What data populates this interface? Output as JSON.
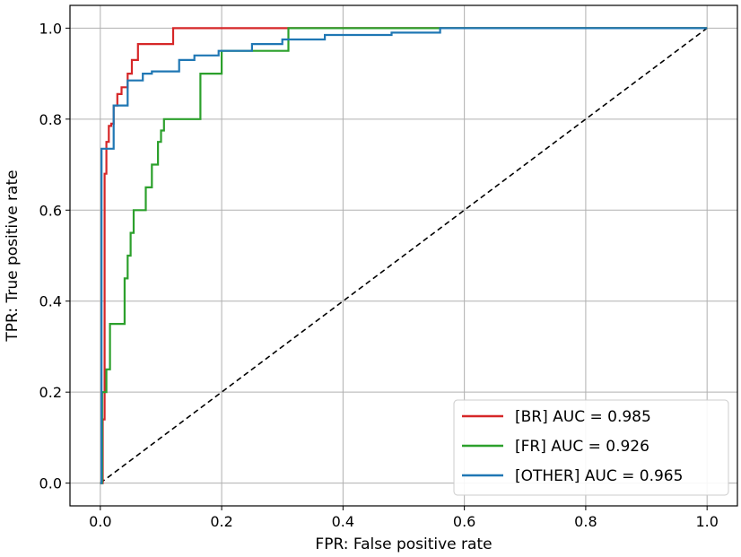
{
  "chart_data": {
    "type": "line",
    "xlabel": "FPR: False positive rate",
    "ylabel": "TPR: True positive rate",
    "xlim": [
      -0.05,
      1.05
    ],
    "ylim": [
      -0.05,
      1.05
    ],
    "xticks": [
      0.0,
      0.2,
      0.4,
      0.6,
      0.8,
      1.0
    ],
    "xtick_labels": [
      "0.0",
      "0.2",
      "0.4",
      "0.6",
      "0.8",
      "1.0"
    ],
    "yticks": [
      0.0,
      0.2,
      0.4,
      0.6,
      0.8,
      1.0
    ],
    "ytick_labels": [
      "0.0",
      "0.2",
      "0.4",
      "0.6",
      "0.8",
      "1.0"
    ],
    "grid": true,
    "legend_position": "lower-right",
    "diagonal": {
      "x": [
        0,
        1
      ],
      "y": [
        0,
        1
      ],
      "style": "dashed",
      "color": "#000000"
    },
    "series": [
      {
        "name": "[BR] AUC = 0.985",
        "color": "#d62728",
        "x": [
          0,
          0.004,
          0.004,
          0.007,
          0.007,
          0.01,
          0.01,
          0.014,
          0.014,
          0.018,
          0.018,
          0.022,
          0.022,
          0.028,
          0.028,
          0.035,
          0.035,
          0.045,
          0.045,
          0.052,
          0.052,
          0.062,
          0.062,
          0.08,
          0.08,
          0.12,
          0.12,
          0.5,
          1.0
        ],
        "y": [
          0,
          0,
          0.14,
          0.14,
          0.68,
          0.68,
          0.75,
          0.75,
          0.785,
          0.785,
          0.79,
          0.79,
          0.83,
          0.83,
          0.855,
          0.855,
          0.87,
          0.87,
          0.9,
          0.9,
          0.93,
          0.93,
          0.965,
          0.965,
          0.965,
          0.965,
          1.0,
          1.0,
          1.0
        ]
      },
      {
        "name": "[FR] AUC = 0.926",
        "color": "#2ca02c",
        "x": [
          0,
          0.003,
          0.003,
          0.01,
          0.01,
          0.016,
          0.016,
          0.04,
          0.04,
          0.045,
          0.045,
          0.05,
          0.05,
          0.055,
          0.055,
          0.075,
          0.075,
          0.085,
          0.085,
          0.095,
          0.095,
          0.1,
          0.1,
          0.105,
          0.105,
          0.11,
          0.11,
          0.165,
          0.165,
          0.2,
          0.2,
          0.31,
          0.31,
          1.0
        ],
        "y": [
          0,
          0,
          0.2,
          0.2,
          0.25,
          0.25,
          0.35,
          0.35,
          0.45,
          0.45,
          0.5,
          0.5,
          0.55,
          0.55,
          0.6,
          0.6,
          0.65,
          0.65,
          0.7,
          0.7,
          0.75,
          0.75,
          0.775,
          0.775,
          0.8,
          0.8,
          0.8,
          0.8,
          0.9,
          0.9,
          0.95,
          0.95,
          1.0,
          1.0
        ]
      },
      {
        "name": "[OTHER] AUC = 0.965",
        "color": "#1f77b4",
        "x": [
          0,
          0.002,
          0.002,
          0.022,
          0.022,
          0.045,
          0.045,
          0.07,
          0.07,
          0.085,
          0.085,
          0.13,
          0.13,
          0.155,
          0.155,
          0.195,
          0.195,
          0.25,
          0.25,
          0.3,
          0.3,
          0.37,
          0.37,
          0.48,
          0.48,
          0.56,
          0.56,
          1.0
        ],
        "y": [
          0,
          0,
          0.735,
          0.735,
          0.83,
          0.83,
          0.885,
          0.885,
          0.9,
          0.9,
          0.905,
          0.905,
          0.93,
          0.93,
          0.94,
          0.94,
          0.95,
          0.95,
          0.965,
          0.965,
          0.975,
          0.975,
          0.985,
          0.985,
          0.99,
          0.99,
          1.0,
          1.0
        ]
      }
    ]
  }
}
